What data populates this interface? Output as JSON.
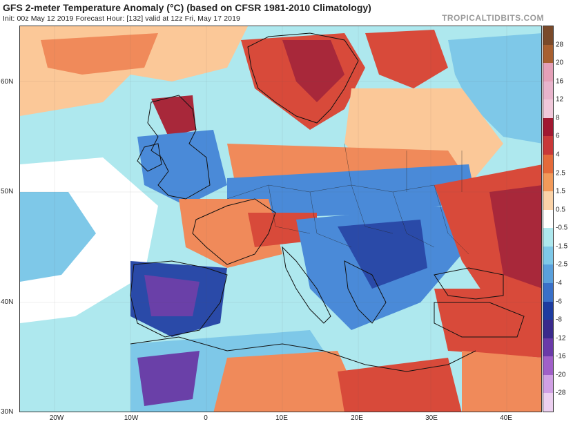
{
  "header": {
    "title": "GFS 2-meter Temperature Anomaly (°C) (based on CFSR 1981-2010 Climatology)",
    "subtitle": "Init: 00z May 12 2019   Forecast Hour: [132]   valid at 12z Fri, May 17 2019",
    "brand": "TROPICALTIDBITS.COM"
  },
  "axes": {
    "lat_labels": [
      "60N",
      "50N",
      "40N",
      "30N"
    ],
    "lon_labels": [
      "20W",
      "10W",
      "0",
      "10E",
      "20E",
      "30E",
      "40E"
    ]
  },
  "colorbar": {
    "labels": [
      "28",
      "20",
      "16",
      "12",
      "8",
      "6",
      "4",
      "2.5",
      "1.5",
      "0.5",
      "-0.5",
      "-1.5",
      "-2.5",
      "-4",
      "-6",
      "-8",
      "-12",
      "-16",
      "-20",
      "-28"
    ],
    "colors": [
      "#7a4a2a",
      "#a86030",
      "#e4a0b8",
      "#e8b4cc",
      "#f0c8da",
      "#a01830",
      "#c83838",
      "#e46a3a",
      "#f29a5a",
      "#fbd3a8",
      "#ffffff",
      "#aee8ee",
      "#7ec8e8",
      "#5aa0dc",
      "#3a70c8",
      "#1e3ca0",
      "#3a2a8c",
      "#6a3aa8",
      "#a060c8",
      "#d0a0e4",
      "#ecd0f0"
    ]
  },
  "map_colors": {
    "warm_strong": "#a8283a",
    "warm": "#d84a3a",
    "warm_light": "#f08a5a",
    "warm_pale": "#fbc898",
    "neutral": "#ffffff",
    "cool_pale": "#aee8ee",
    "cool": "#7ec8e8",
    "cool_mid": "#4a8ad8",
    "cool_strong": "#2a4aa8",
    "purple": "#6a40a8"
  }
}
